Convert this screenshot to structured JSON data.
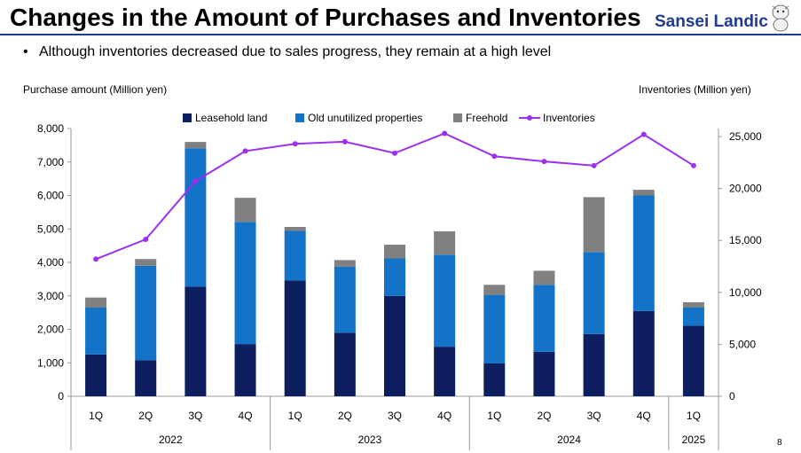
{
  "header": {
    "title": "Changes in the Amount of Purchases and Inventories",
    "logo_text": "Sansei Landic"
  },
  "bullet": {
    "text": "Although inventories decreased due to sales progress, they remain at a high level"
  },
  "page_number": "8",
  "colors": {
    "leasehold": "#0d1f5e",
    "old_unutilized": "#1273c9",
    "freehold": "#808080",
    "inventories": "#9b30f0",
    "brand": "#1f3a93"
  },
  "chart_data": {
    "type": "bar",
    "stacked": true,
    "ylabel": "Purchase amount (Million yen)",
    "y2label": "Inventories (Million yen)",
    "ylim": [
      0,
      8000
    ],
    "y_ticks": [
      0,
      1000,
      2000,
      3000,
      4000,
      5000,
      6000,
      7000,
      8000
    ],
    "y_tick_labels": [
      "0",
      "1,000",
      "2,000",
      "3,000",
      "4,000",
      "5,000",
      "6,000",
      "7,000",
      "8,000"
    ],
    "y2lim": [
      0,
      26000
    ],
    "y2_ticks": [
      0,
      5000,
      10000,
      15000,
      20000,
      25000
    ],
    "y2_tick_labels": [
      "0",
      "5,000",
      "10,000",
      "15,000",
      "20,000",
      "25,000"
    ],
    "categories": [
      "1Q",
      "2Q",
      "3Q",
      "4Q",
      "1Q",
      "2Q",
      "3Q",
      "4Q",
      "1Q",
      "2Q",
      "3Q",
      "4Q",
      "1Q"
    ],
    "year_groups": [
      {
        "label": "2022",
        "count": 4
      },
      {
        "label": "2023",
        "count": 4
      },
      {
        "label": "2024",
        "count": 4
      },
      {
        "label": "2025",
        "count": 1
      }
    ],
    "series": [
      {
        "name": "Leasehold land",
        "type": "bar",
        "values": [
          1250,
          1080,
          3280,
          1560,
          3460,
          1900,
          3000,
          1480,
          980,
          1330,
          1860,
          2550,
          2110
        ]
      },
      {
        "name": "Old unutilized properties",
        "type": "bar",
        "values": [
          1400,
          2820,
          4130,
          3650,
          1480,
          1970,
          1120,
          2750,
          2050,
          2000,
          2450,
          3450,
          540
        ]
      },
      {
        "name": "Freehold",
        "type": "bar",
        "values": [
          300,
          200,
          190,
          720,
          120,
          200,
          410,
          700,
          300,
          420,
          1640,
          170,
          160
        ]
      },
      {
        "name": "Inventories",
        "type": "line",
        "axis": "right",
        "values": [
          13200,
          15100,
          20700,
          23600,
          24300,
          24500,
          23400,
          25300,
          23100,
          22600,
          22200,
          25200,
          22200
        ]
      }
    ],
    "legend": "top",
    "grid": false
  }
}
